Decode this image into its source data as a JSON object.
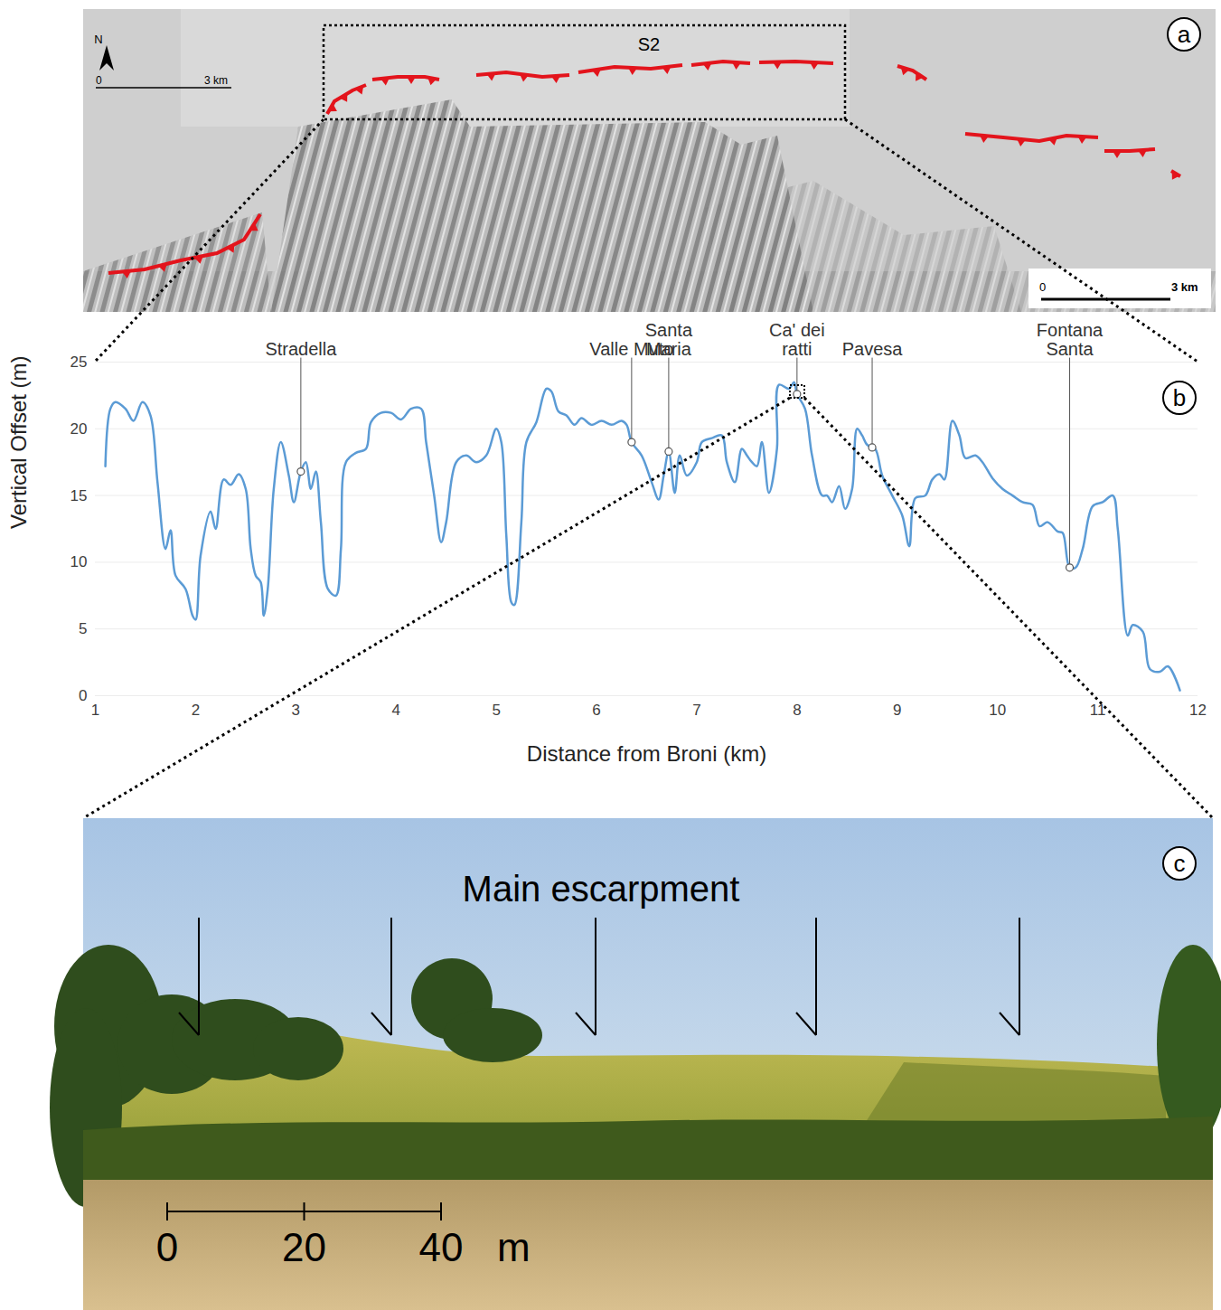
{
  "panel_labels": [
    "a",
    "b",
    "c"
  ],
  "map_panel": {
    "box_label": "S2",
    "north": "N",
    "scale_bars": [
      {
        "ticks": [
          0,
          3
        ],
        "unit": "km"
      },
      {
        "ticks": [
          0,
          3
        ],
        "unit": "km"
      }
    ]
  },
  "chart_data": {
    "type": "line",
    "x_label": "Distance from Broni (km)",
    "y_label": "Vertical Offset (m)",
    "xlim": [
      1,
      12
    ],
    "xticks": [
      1,
      2,
      3,
      4,
      5,
      6,
      7,
      8,
      9,
      10,
      11,
      12
    ],
    "ylim": [
      0,
      25
    ],
    "yticks": [
      0,
      5,
      10,
      15,
      20,
      25
    ],
    "grid": true,
    "color": "#5b9bd5",
    "x": [
      1.1,
      1.15,
      1.2,
      1.3,
      1.38,
      1.47,
      1.55,
      1.62,
      1.7,
      1.75,
      1.8,
      1.9,
      1.97,
      2.0,
      2.05,
      2.15,
      2.2,
      2.28,
      2.35,
      2.43,
      2.5,
      2.55,
      2.6,
      2.65,
      2.68,
      2.72,
      2.78,
      2.85,
      2.93,
      2.98,
      3.05,
      3.1,
      3.15,
      3.2,
      3.25,
      3.32,
      3.4,
      3.45,
      3.5,
      3.6,
      3.7,
      3.75,
      3.85,
      3.95,
      4.05,
      4.15,
      4.25,
      4.3,
      4.38,
      4.45,
      4.5,
      4.6,
      4.7,
      4.8,
      4.9,
      5.0,
      5.05,
      5.1,
      5.15,
      5.18,
      5.25,
      5.3,
      5.4,
      5.5,
      5.55,
      5.62,
      5.7,
      5.78,
      5.85,
      5.95,
      6.05,
      6.15,
      6.25,
      6.3,
      6.35,
      6.45,
      6.55,
      6.62,
      6.67,
      6.72,
      6.78,
      6.83,
      6.9,
      7.0,
      7.05,
      7.15,
      7.25,
      7.3,
      7.38,
      7.45,
      7.5,
      7.55,
      7.6,
      7.65,
      7.72,
      7.8,
      7.82,
      7.92,
      7.97,
      8.0,
      8.08,
      8.15,
      8.25,
      8.3,
      8.35,
      8.42,
      8.48,
      8.55,
      8.6,
      8.65,
      8.7,
      8.78,
      8.85,
      8.95,
      9.05,
      9.12,
      9.18,
      9.28,
      9.35,
      9.42,
      9.47,
      9.55,
      9.62,
      9.68,
      9.78,
      9.85,
      9.95,
      10.05,
      10.15,
      10.25,
      10.35,
      10.42,
      10.5,
      10.6,
      10.65,
      10.72,
      10.78,
      10.85,
      10.95,
      11.05,
      11.15,
      11.2,
      11.3,
      11.35,
      11.45,
      11.52,
      11.62,
      11.7,
      11.82
    ],
    "values": [
      17.2,
      21.5,
      22,
      21.5,
      20.6,
      22,
      21,
      16,
      11,
      12.4,
      9,
      8,
      6,
      5.7,
      10.5,
      13.8,
      12.5,
      16.2,
      15.8,
      16.6,
      15.5,
      11,
      9,
      8.5,
      6,
      8,
      15.5,
      19,
      16.5,
      14.5,
      16.8,
      17.5,
      15.5,
      16.8,
      13,
      8,
      7.5,
      11,
      17.5,
      18.2,
      18.5,
      20.5,
      21.2,
      21.2,
      20.7,
      21.5,
      21.5,
      19,
      15,
      11.5,
      13,
      17.5,
      18,
      17.5,
      18,
      20,
      19,
      12,
      7,
      6.8,
      13,
      19,
      20.5,
      23,
      22.8,
      21.3,
      21,
      20.3,
      20.8,
      20.3,
      20.6,
      20.3,
      20.6,
      20.3,
      19,
      18,
      16,
      14.7,
      16.5,
      18.3,
      15.2,
      18,
      16.5,
      17.5,
      19,
      19.3,
      19.5,
      17.5,
      16,
      18.5,
      18,
      17.5,
      17.2,
      19,
      15.2,
      18.5,
      23.3,
      23,
      23.5,
      22.6,
      21.5,
      18,
      15,
      15,
      14.5,
      15.7,
      14,
      15.5,
      20,
      19.5,
      18.8,
      18.5,
      16.5,
      15,
      13.5,
      11.2,
      14.8,
      15,
      16.2,
      16.6,
      16.2,
      20.6,
      19.5,
      17.8,
      18,
      17.5,
      16.3,
      15.5,
      15,
      14.5,
      14.3,
      12.7,
      13,
      12.3,
      12.2,
      9.6,
      9.6,
      11,
      14.2,
      14.5,
      15,
      12.5,
      4.5,
      5.3,
      4.8,
      2,
      1.8,
      2.2,
      0.4
    ],
    "annotations": [
      {
        "text": "Stradella",
        "x": 3.05,
        "y": 16.8
      },
      {
        "text": "Valle Muto",
        "x": 6.35,
        "y": 19
      },
      {
        "text": "Santa\nMaria",
        "x": 6.72,
        "y": 18.3
      },
      {
        "text": "Ca' dei\nratti",
        "x": 8.0,
        "y": 22.6
      },
      {
        "text": "Pavesa",
        "x": 8.75,
        "y": 18.6
      },
      {
        "text": "Fontana\nSanta",
        "x": 10.72,
        "y": 9.6
      }
    ]
  },
  "photo_panel": {
    "title": "Main escarpment",
    "scale_bar": {
      "ticks": [
        0,
        20,
        40
      ],
      "unit": "m"
    }
  }
}
